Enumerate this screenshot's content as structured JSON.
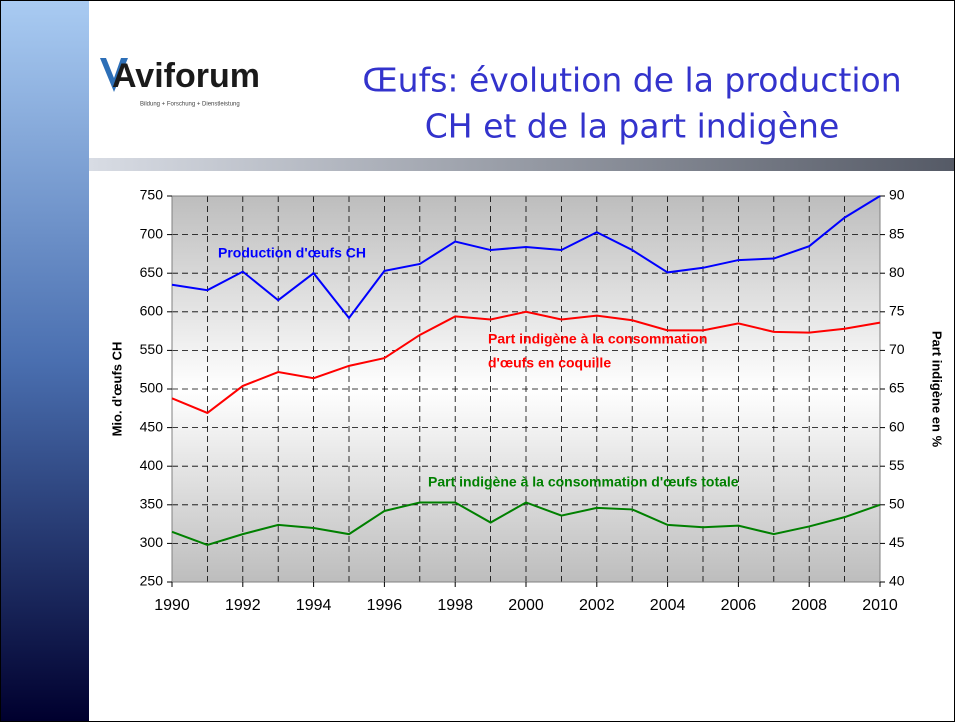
{
  "slide": {
    "title_lines": [
      "Œufs: évolution de la production",
      "CH et de la part indigène"
    ],
    "logo": {
      "name": "Aviforum",
      "tagline": "Bildung + Forschung + Dienstleistung"
    }
  },
  "chart_data": {
    "type": "line",
    "x": [
      1990,
      1991,
      1992,
      1993,
      1994,
      1995,
      1996,
      1997,
      1998,
      1999,
      2000,
      2001,
      2002,
      2003,
      2004,
      2005,
      2006,
      2007,
      2008,
      2009,
      2010
    ],
    "series": [
      {
        "name": "Production d'œufs CH",
        "color": "#0000ff",
        "axis": "y",
        "values": [
          635,
          628,
          652,
          615,
          650,
          592,
          653,
          662,
          691,
          680,
          684,
          680,
          703,
          680,
          651,
          657,
          667,
          669,
          685,
          722,
          750
        ]
      },
      {
        "name": "Part indigène à la consommation d'œufs en coquille",
        "color": "#ff0000",
        "axis": "y2",
        "values": [
          63.8,
          61.9,
          65.4,
          67.2,
          66.4,
          68,
          69,
          72,
          74.4,
          74,
          75,
          74,
          74.5,
          73.9,
          72.6,
          72.6,
          73.5,
          72.4,
          72.3,
          72.8,
          73.6
        ]
      },
      {
        "name": "Part indigène à la consommation d'œufs totale",
        "color": "#008000",
        "axis": "y2",
        "values": [
          46.5,
          44.8,
          46.2,
          47.4,
          47,
          46.2,
          49.2,
          50.3,
          50.3,
          47.7,
          50.3,
          48.6,
          49.6,
          49.4,
          47.4,
          47.1,
          47.3,
          46.2,
          47.2,
          48.4,
          50
        ]
      }
    ],
    "annotations": [
      "Production d'œufs CH",
      "Part indigène à la consommation",
      "d'œufs en coquille",
      "Part indigène à la consommation d'œufs totale"
    ],
    "ylabel": "Mio. d'œufs CH",
    "y2label": "Part indigène en %",
    "xlim": [
      1990,
      2010
    ],
    "xticks": [
      1990,
      1992,
      1994,
      1996,
      1998,
      2000,
      2002,
      2004,
      2006,
      2008,
      2010
    ],
    "ylim": [
      250,
      750
    ],
    "yticks": [
      250,
      300,
      350,
      400,
      450,
      500,
      550,
      600,
      650,
      700,
      750
    ],
    "y2lim": [
      40,
      90
    ],
    "y2ticks": [
      40,
      45,
      50,
      55,
      60,
      65,
      70,
      75,
      80,
      85,
      90
    ],
    "grid": true
  }
}
